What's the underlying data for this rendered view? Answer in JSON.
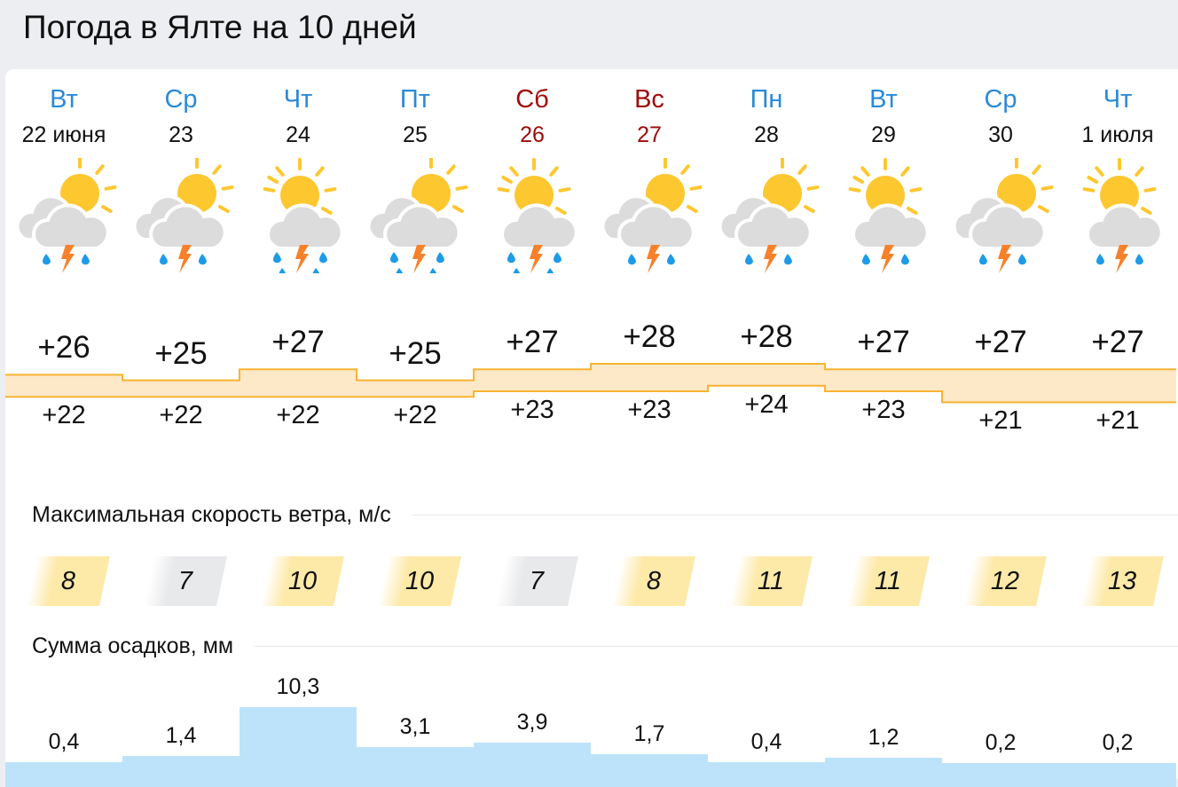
{
  "title": "Погода в Ялте на 10 дней",
  "colors": {
    "weekday": "#2a8ad6",
    "weekend": "#a00a0a",
    "wind_high": "#fde9a8",
    "wind_low": "#e8e9eb",
    "precip": "#bde3fb",
    "band": "#fde8c8",
    "band_line": "#f8b432"
  },
  "days": [
    {
      "dow": "Вт",
      "date": "22 июня",
      "weekend": false,
      "icon": "partly-cloudy-thunderstorm-icon",
      "clouds": 2,
      "drops": 2,
      "tmax": "+26",
      "tmin": "+22",
      "max": 26,
      "min": 22,
      "wind": "8",
      "windv": 8,
      "precip": "0,4",
      "p": 0.4
    },
    {
      "dow": "Ср",
      "date": "23",
      "weekend": false,
      "icon": "partly-cloudy-thunderstorm-icon",
      "clouds": 2,
      "drops": 2,
      "tmax": "+25",
      "tmin": "+22",
      "max": 25,
      "min": 22,
      "wind": "7",
      "windv": 7,
      "precip": "1,4",
      "p": 1.4
    },
    {
      "dow": "Чт",
      "date": "24",
      "weekend": false,
      "icon": "sun-cloud-heavy-thunderstorm-icon",
      "clouds": 1,
      "drops": 4,
      "tmax": "+27",
      "tmin": "+22",
      "max": 27,
      "min": 22,
      "wind": "10",
      "windv": 10,
      "precip": "10,3",
      "p": 10.3
    },
    {
      "dow": "Пт",
      "date": "25",
      "weekend": false,
      "icon": "partly-cloudy-heavy-thunderstorm-icon",
      "clouds": 2,
      "drops": 4,
      "tmax": "+25",
      "tmin": "+22",
      "max": 25,
      "min": 22,
      "wind": "10",
      "windv": 10,
      "precip": "3,1",
      "p": 3.1
    },
    {
      "dow": "Сб",
      "date": "26",
      "weekend": true,
      "icon": "sun-cloud-heavy-thunderstorm-icon",
      "clouds": 1,
      "drops": 4,
      "tmax": "+27",
      "tmin": "+23",
      "max": 27,
      "min": 23,
      "wind": "7",
      "windv": 7,
      "precip": "3,9",
      "p": 3.9
    },
    {
      "dow": "Вс",
      "date": "27",
      "weekend": true,
      "icon": "partly-cloudy-thunderstorm-icon",
      "clouds": 2,
      "drops": 2,
      "tmax": "+28",
      "tmin": "+23",
      "max": 28,
      "min": 23,
      "wind": "8",
      "windv": 8,
      "precip": "1,7",
      "p": 1.7
    },
    {
      "dow": "Пн",
      "date": "28",
      "weekend": false,
      "icon": "partly-cloudy-thunderstorm-icon",
      "clouds": 2,
      "drops": 2,
      "tmax": "+28",
      "tmin": "+24",
      "max": 28,
      "min": 24,
      "wind": "11",
      "windv": 11,
      "precip": "0,4",
      "p": 0.4
    },
    {
      "dow": "Вт",
      "date": "29",
      "weekend": false,
      "icon": "sun-cloud-thunderstorm-icon",
      "clouds": 1,
      "drops": 2,
      "tmax": "+27",
      "tmin": "+23",
      "max": 27,
      "min": 23,
      "wind": "11",
      "windv": 11,
      "precip": "1,2",
      "p": 1.2
    },
    {
      "dow": "Ср",
      "date": "30",
      "weekend": false,
      "icon": "partly-cloudy-thunderstorm-icon",
      "clouds": 2,
      "drops": 2,
      "tmax": "+27",
      "tmin": "+21",
      "max": 27,
      "min": 21,
      "wind": "12",
      "windv": 12,
      "precip": "0,2",
      "p": 0.2
    },
    {
      "dow": "Чт",
      "date": "1 июля",
      "weekend": false,
      "icon": "sun-cloud-thunderstorm-icon",
      "clouds": 1,
      "drops": 2,
      "tmax": "+27",
      "tmin": "+21",
      "max": 27,
      "min": 21,
      "wind": "13",
      "windv": 13,
      "precip": "0,2",
      "p": 0.2
    }
  ],
  "wind_label": "Максимальная скорость ветра, м/с",
  "precip_label": "Сумма осадков, мм"
}
